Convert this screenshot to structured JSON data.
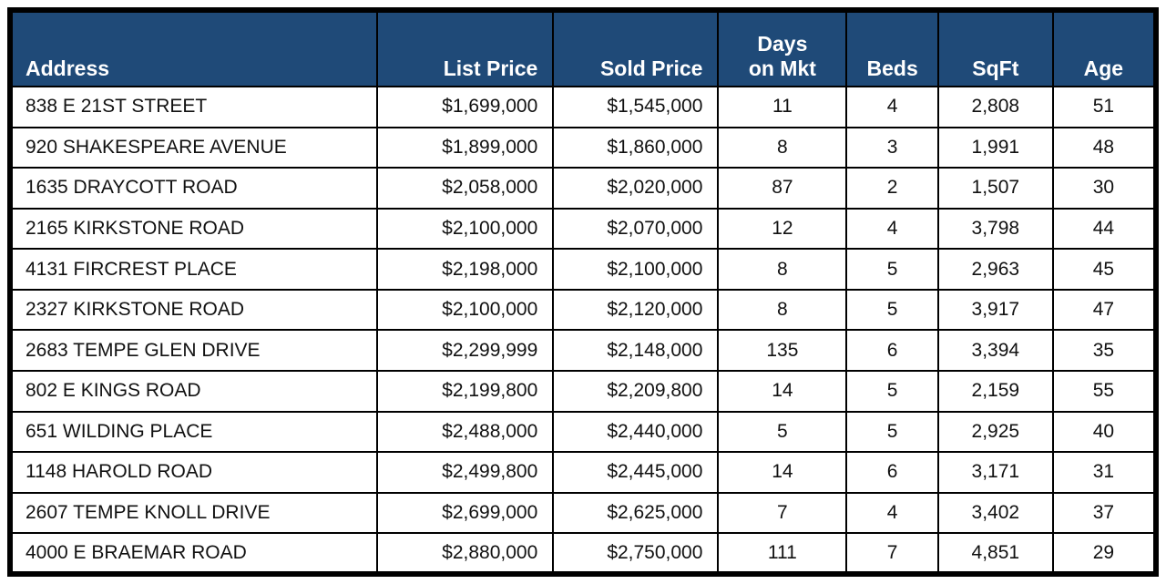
{
  "colors": {
    "header_bg": "#1F4A78",
    "header_text": "#FFFFFF",
    "body_bg": "#FFFFFF",
    "border": "#000000"
  },
  "chart_data": {
    "type": "table",
    "columns": [
      {
        "key": "address",
        "label": "Address",
        "align": "left"
      },
      {
        "key": "list_price",
        "label": "List Price",
        "align": "right"
      },
      {
        "key": "sold_price",
        "label": "Sold Price",
        "align": "right"
      },
      {
        "key": "days_on_mkt",
        "label": "Days\non Mkt",
        "align": "center"
      },
      {
        "key": "beds",
        "label": "Beds",
        "align": "center"
      },
      {
        "key": "sqft",
        "label": "SqFt",
        "align": "center"
      },
      {
        "key": "age",
        "label": "Age",
        "align": "center"
      }
    ],
    "rows": [
      [
        "838 E 21ST STREET",
        "$1,699,000",
        "$1,545,000",
        "11",
        "4",
        "2,808",
        "51"
      ],
      [
        "920 SHAKESPEARE AVENUE",
        "$1,899,000",
        "$1,860,000",
        "8",
        "3",
        "1,991",
        "48"
      ],
      [
        "1635 DRAYCOTT ROAD",
        "$2,058,000",
        "$2,020,000",
        "87",
        "2",
        "1,507",
        "30"
      ],
      [
        "2165 KIRKSTONE ROAD",
        "$2,100,000",
        "$2,070,000",
        "12",
        "4",
        "3,798",
        "44"
      ],
      [
        "4131 FIRCREST PLACE",
        "$2,198,000",
        "$2,100,000",
        "8",
        "5",
        "2,963",
        "45"
      ],
      [
        "2327 KIRKSTONE ROAD",
        "$2,100,000",
        "$2,120,000",
        "8",
        "5",
        "3,917",
        "47"
      ],
      [
        "2683 TEMPE GLEN DRIVE",
        "$2,299,999",
        "$2,148,000",
        "135",
        "6",
        "3,394",
        "35"
      ],
      [
        "802 E KINGS ROAD",
        "$2,199,800",
        "$2,209,800",
        "14",
        "5",
        "2,159",
        "55"
      ],
      [
        "651 WILDING PLACE",
        "$2,488,000",
        "$2,440,000",
        "5",
        "5",
        "2,925",
        "40"
      ],
      [
        "1148 HAROLD ROAD",
        "$2,499,800",
        "$2,445,000",
        "14",
        "6",
        "3,171",
        "31"
      ],
      [
        "2607 TEMPE KNOLL DRIVE",
        "$2,699,000",
        "$2,625,000",
        "7",
        "4",
        "3,402",
        "37"
      ],
      [
        "4000 E BRAEMAR ROAD",
        "$2,880,000",
        "$2,750,000",
        "111",
        "7",
        "4,851",
        "29"
      ]
    ]
  }
}
